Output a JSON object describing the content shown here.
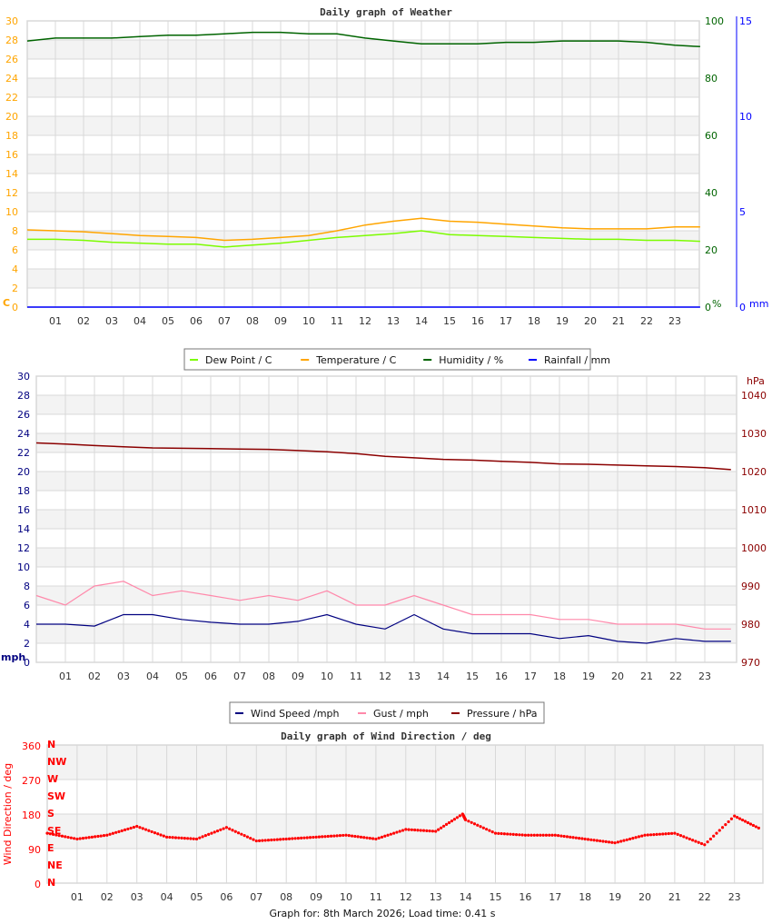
{
  "footer": "Graph for: 8th March 2026; Load time: 0.41 s",
  "colors": {
    "dew": "#7cfc00",
    "temp": "#ffa500",
    "hum": "#006400",
    "rain": "#0000ff",
    "wind": "#000080",
    "gust": "#ff88aa",
    "pressure": "#8b0000",
    "dir": "#ff0000",
    "grid": "#d8d8d8",
    "band": "#f3f3f3"
  },
  "chart_data": [
    {
      "type": "line",
      "title": "Daily graph of Weather",
      "x_ticks": [
        "01",
        "02",
        "03",
        "04",
        "05",
        "06",
        "07",
        "08",
        "09",
        "10",
        "11",
        "12",
        "13",
        "14",
        "15",
        "16",
        "17",
        "18",
        "19",
        "20",
        "21",
        "22",
        "23"
      ],
      "y_left": {
        "label": "C",
        "range": [
          0,
          30
        ],
        "ticks": [
          0,
          2,
          4,
          6,
          8,
          10,
          12,
          14,
          16,
          18,
          20,
          22,
          24,
          26,
          28,
          30
        ]
      },
      "y_right1": {
        "label": "%",
        "range": [
          0,
          100
        ],
        "ticks": [
          0,
          20,
          40,
          60,
          80,
          100
        ]
      },
      "y_right2": {
        "label": "mm",
        "range": [
          0,
          15
        ],
        "ticks": [
          0,
          5,
          10,
          15
        ]
      },
      "legend": [
        "Dew Point / C",
        "Temperature / C",
        "Humidity / %",
        "Rainfall / mm"
      ],
      "x_hours": [
        0,
        1,
        2,
        3,
        4,
        5,
        6,
        7,
        8,
        9,
        10,
        11,
        12,
        13,
        14,
        15,
        16,
        17,
        18,
        19,
        20,
        21,
        22,
        23,
        23.9
      ],
      "series": [
        {
          "name": "Dew Point / C",
          "axis": "left",
          "values": [
            7.1,
            7.1,
            7.0,
            6.8,
            6.7,
            6.6,
            6.6,
            6.3,
            6.5,
            6.7,
            7.0,
            7.3,
            7.5,
            7.7,
            8.0,
            7.6,
            7.5,
            7.4,
            7.3,
            7.2,
            7.1,
            7.1,
            7.0,
            7.0,
            6.9
          ]
        },
        {
          "name": "Temperature / C",
          "axis": "left",
          "values": [
            8.1,
            8.0,
            7.9,
            7.7,
            7.5,
            7.4,
            7.3,
            7.0,
            7.1,
            7.3,
            7.5,
            8.0,
            8.6,
            9.0,
            9.3,
            9.0,
            8.9,
            8.7,
            8.5,
            8.3,
            8.2,
            8.2,
            8.2,
            8.4,
            8.4
          ]
        },
        {
          "name": "Humidity / %",
          "axis": "right1",
          "values": [
            93,
            94,
            94,
            94,
            94.5,
            95,
            95,
            95.5,
            96,
            96,
            95.5,
            95.5,
            94,
            93,
            92,
            92,
            92,
            92.5,
            92.5,
            93,
            93,
            93,
            92.5,
            91.5,
            91
          ]
        },
        {
          "name": "Rainfall / mm",
          "axis": "right2",
          "values": [
            0,
            0,
            0,
            0,
            0,
            0,
            0,
            0,
            0,
            0,
            0,
            0,
            0,
            0,
            0,
            0,
            0,
            0,
            0,
            0,
            0,
            0,
            0,
            0,
            0
          ]
        }
      ]
    },
    {
      "type": "line",
      "x_ticks": [
        "01",
        "02",
        "03",
        "04",
        "05",
        "06",
        "07",
        "08",
        "09",
        "10",
        "11",
        "12",
        "13",
        "14",
        "15",
        "16",
        "17",
        "18",
        "19",
        "20",
        "21",
        "22",
        "23"
      ],
      "y_left": {
        "label": "mph",
        "range": [
          0,
          30
        ],
        "ticks": [
          0,
          2,
          4,
          6,
          8,
          10,
          12,
          14,
          16,
          18,
          20,
          22,
          24,
          26,
          28,
          30
        ]
      },
      "y_right": {
        "label": "hPa",
        "range": [
          970,
          1045
        ],
        "ticks": [
          970,
          980,
          990,
          1000,
          1010,
          1020,
          1030,
          1040
        ]
      },
      "legend": [
        "Wind Speed /mph",
        "Gust / mph",
        "Pressure / hPa"
      ],
      "x_hours": [
        0,
        1,
        2,
        3,
        4,
        5,
        6,
        7,
        8,
        9,
        10,
        11,
        12,
        13,
        14,
        15,
        16,
        17,
        18,
        19,
        20,
        21,
        22,
        23,
        23.9
      ],
      "series": [
        {
          "name": "Wind Speed /mph",
          "axis": "left",
          "values": [
            4,
            4,
            3.8,
            5,
            5,
            4.5,
            4.2,
            4,
            4,
            4.3,
            5,
            4,
            3.5,
            5,
            3.5,
            3,
            3,
            3,
            2.5,
            2.8,
            2.2,
            2,
            2.5,
            2.2,
            2.2
          ]
        },
        {
          "name": "Gust / mph",
          "axis": "left",
          "values": [
            7,
            6,
            8,
            8.5,
            7,
            7.5,
            7,
            6.5,
            7,
            6.5,
            7.5,
            6,
            6,
            7,
            6,
            5,
            5,
            5,
            4.5,
            4.5,
            4,
            4,
            4,
            3.5,
            3.5
          ]
        },
        {
          "name": "Pressure / hPa",
          "axis": "right",
          "values": [
            1027.5,
            1027.2,
            1026.8,
            1026.5,
            1026.2,
            1026.1,
            1026,
            1025.9,
            1025.8,
            1025.5,
            1025.2,
            1024.7,
            1024,
            1023.6,
            1023.2,
            1023,
            1022.7,
            1022.4,
            1022,
            1021.9,
            1021.7,
            1021.5,
            1021.3,
            1021,
            1020.5
          ]
        }
      ]
    },
    {
      "type": "scatter",
      "title": "Daily graph of Wind Direction / deg",
      "x_ticks": [
        "01",
        "02",
        "03",
        "04",
        "05",
        "06",
        "07",
        "08",
        "09",
        "10",
        "11",
        "12",
        "13",
        "14",
        "15",
        "16",
        "17",
        "18",
        "19",
        "20",
        "21",
        "22",
        "23"
      ],
      "y_left": {
        "label": "Wind Direction / deg",
        "range": [
          0,
          360
        ],
        "ticks": [
          0,
          90,
          180,
          270,
          360
        ]
      },
      "compass": [
        "N",
        "NE",
        "E",
        "SE",
        "S",
        "SW",
        "W",
        "NW",
        "N"
      ],
      "x_hours": [
        0,
        1,
        2,
        3,
        4,
        5,
        6,
        7,
        8,
        9,
        10,
        11,
        12,
        13,
        13.9,
        14,
        15,
        16,
        17,
        18,
        19,
        20,
        21,
        22,
        23,
        23.9
      ],
      "series": [
        {
          "name": "Wind Direction / deg",
          "values": [
            130,
            115,
            125,
            148,
            120,
            115,
            145,
            110,
            115,
            120,
            125,
            115,
            140,
            135,
            180,
            165,
            130,
            125,
            125,
            115,
            105,
            125,
            130,
            100,
            175,
            140
          ]
        }
      ]
    }
  ]
}
